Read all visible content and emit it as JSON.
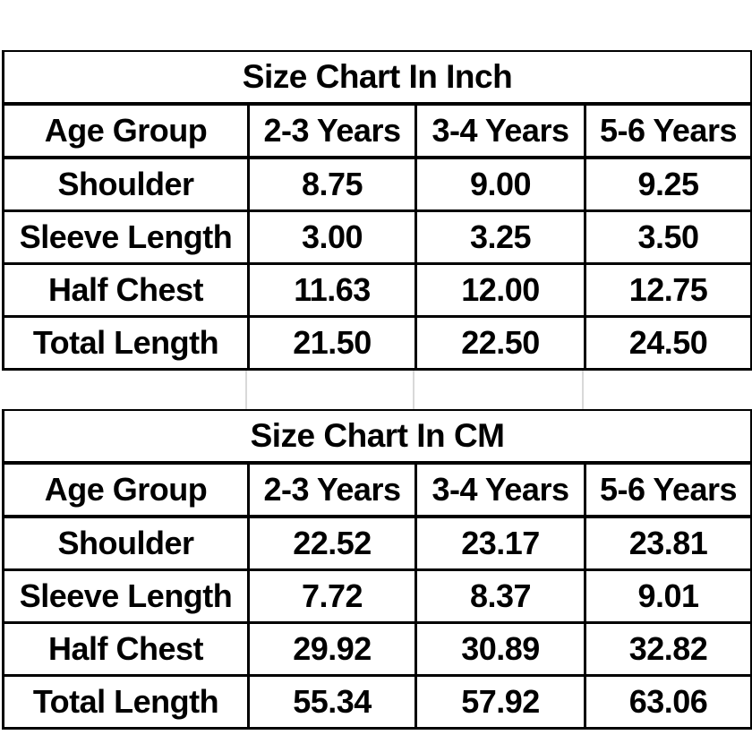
{
  "colors": {
    "background": "#ffffff",
    "text": "#000000",
    "grid_border": "#000000",
    "spacer_divider": "#d9d9d9"
  },
  "chart_data": [
    {
      "type": "table",
      "title": "Size Chart In Inch",
      "columns": [
        "Age Group",
        "2-3 Years",
        "3-4 Years",
        "5-6 Years"
      ],
      "rows": [
        [
          "Shoulder",
          "8.75",
          "9.00",
          "9.25"
        ],
        [
          "Sleeve Length",
          "3.00",
          "3.25",
          "3.50"
        ],
        [
          "Half Chest",
          "11.63",
          "12.00",
          "12.75"
        ],
        [
          "Total Length",
          "21.50",
          "22.50",
          "24.50"
        ]
      ]
    },
    {
      "type": "table",
      "title": "Size Chart In CM",
      "columns": [
        "Age Group",
        "2-3 Years",
        "3-4 Years",
        "5-6 Years"
      ],
      "rows": [
        [
          "Shoulder",
          "22.52",
          "23.17",
          "23.81"
        ],
        [
          "Sleeve Length",
          "7.72",
          "8.37",
          "9.01"
        ],
        [
          "Half Chest",
          "29.92",
          "30.89",
          "32.82"
        ],
        [
          "Total Length",
          "55.34",
          "57.92",
          "63.06"
        ]
      ]
    }
  ],
  "tables": [
    {
      "title": "Size Chart In Inch",
      "header": [
        "Age Group",
        "2-3 Years",
        "3-4 Years",
        "5-6 Years"
      ],
      "rows": [
        {
          "label": "Shoulder",
          "values": [
            "8.75",
            "9.00",
            "9.25"
          ]
        },
        {
          "label": "Sleeve Length",
          "values": [
            "3.00",
            "3.25",
            "3.50"
          ]
        },
        {
          "label": "Half Chest",
          "values": [
            "11.63",
            "12.00",
            "12.75"
          ]
        },
        {
          "label": "Total Length",
          "values": [
            "21.50",
            "22.50",
            "24.50"
          ]
        }
      ]
    },
    {
      "title": "Size Chart In CM",
      "header": [
        "Age Group",
        "2-3 Years",
        "3-4 Years",
        "5-6 Years"
      ],
      "rows": [
        {
          "label": "Shoulder",
          "values": [
            "22.52",
            "23.17",
            "23.81"
          ]
        },
        {
          "label": "Sleeve Length",
          "values": [
            "7.72",
            "8.37",
            "9.01"
          ]
        },
        {
          "label": "Half Chest",
          "values": [
            "29.92",
            "30.89",
            "32.82"
          ]
        },
        {
          "label": "Total Length",
          "values": [
            "55.34",
            "57.92",
            "63.06"
          ]
        }
      ]
    }
  ]
}
